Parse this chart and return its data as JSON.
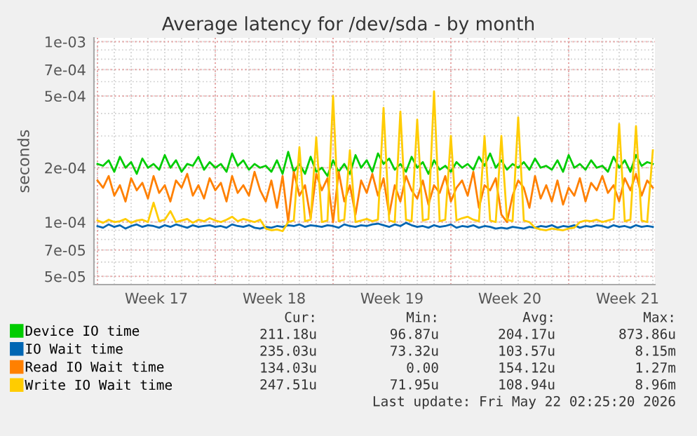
{
  "chart_data": {
    "type": "line",
    "title": "Average latency for /dev/sda - by month",
    "ylabel": "seconds",
    "log": "y",
    "grid": true,
    "legend": "bottom",
    "marker": "none",
    "line_style": "solid",
    "xlim": [
      "2026-04-18T19:00",
      "2026-05-22T03:00"
    ],
    "xticks": [
      {
        "value": "2026-04-19",
        "label": null
      },
      {
        "value": "2026-04-22T12:00",
        "label": "Week 17"
      },
      {
        "value": "2026-04-26",
        "label": null
      },
      {
        "value": "2026-04-29T12:00",
        "label": "Week 18"
      },
      {
        "value": "2026-05-03",
        "label": null
      },
      {
        "value": "2026-05-06T12:00",
        "label": "Week 19"
      },
      {
        "value": "2026-05-10",
        "label": null
      },
      {
        "value": "2026-05-13T12:00",
        "label": "Week 20"
      },
      {
        "value": "2026-05-17",
        "label": null
      },
      {
        "value": "2026-05-20T12:00",
        "label": "Week 21"
      }
    ],
    "ylim": [
      4.5e-05,
      0.00105
    ],
    "yticks": [
      {
        "value": 5e-05,
        "label": "5e-05"
      },
      {
        "value": 7e-05,
        "label": "7e-05"
      },
      {
        "value": 0.0001,
        "label": "1e-04"
      },
      {
        "value": 0.0002,
        "label": "2e-04"
      },
      {
        "value": 0.0005,
        "label": "5e-04"
      },
      {
        "value": 0.0007,
        "label": "7e-04"
      },
      {
        "value": 0.001,
        "label": "1e-03"
      }
    ],
    "x": [
      "2026-04-19T00:00",
      "2026-04-19T08:00",
      "2026-04-19T16:00",
      "2026-04-20T00:00",
      "2026-04-20T08:00",
      "2026-04-20T16:00",
      "2026-04-21T00:00",
      "2026-04-21T08:00",
      "2026-04-21T16:00",
      "2026-04-22T00:00",
      "2026-04-22T08:00",
      "2026-04-22T16:00",
      "2026-04-23T00:00",
      "2026-04-23T08:00",
      "2026-04-23T16:00",
      "2026-04-24T00:00",
      "2026-04-24T08:00",
      "2026-04-24T16:00",
      "2026-04-25T00:00",
      "2026-04-25T08:00",
      "2026-04-25T16:00",
      "2026-04-26T00:00",
      "2026-04-26T08:00",
      "2026-04-26T16:00",
      "2026-04-27T00:00",
      "2026-04-27T08:00",
      "2026-04-27T16:00",
      "2026-04-28T00:00",
      "2026-04-28T08:00",
      "2026-04-28T16:00",
      "2026-04-29T00:00",
      "2026-04-29T08:00",
      "2026-04-29T16:00",
      "2026-04-30T00:00",
      "2026-04-30T08:00",
      "2026-04-30T16:00",
      "2026-05-01T00:00",
      "2026-05-01T08:00",
      "2026-05-01T16:00",
      "2026-05-02T00:00",
      "2026-05-02T08:00",
      "2026-05-02T16:00",
      "2026-05-03T00:00",
      "2026-05-03T08:00",
      "2026-05-03T16:00",
      "2026-05-04T00:00",
      "2026-05-04T08:00",
      "2026-05-04T16:00",
      "2026-05-05T00:00",
      "2026-05-05T08:00",
      "2026-05-05T16:00",
      "2026-05-06T00:00",
      "2026-05-06T08:00",
      "2026-05-06T16:00",
      "2026-05-07T00:00",
      "2026-05-07T08:00",
      "2026-05-07T16:00",
      "2026-05-08T00:00",
      "2026-05-08T08:00",
      "2026-05-08T16:00",
      "2026-05-09T00:00",
      "2026-05-09T08:00",
      "2026-05-09T16:00",
      "2026-05-10T00:00",
      "2026-05-10T08:00",
      "2026-05-10T16:00",
      "2026-05-11T00:00",
      "2026-05-11T08:00",
      "2026-05-11T16:00",
      "2026-05-12T00:00",
      "2026-05-12T08:00",
      "2026-05-12T16:00",
      "2026-05-13T00:00",
      "2026-05-13T08:00",
      "2026-05-13T16:00",
      "2026-05-14T00:00",
      "2026-05-14T08:00",
      "2026-05-14T16:00",
      "2026-05-15T00:00",
      "2026-05-15T08:00",
      "2026-05-15T16:00",
      "2026-05-16T00:00",
      "2026-05-16T08:00",
      "2026-05-16T16:00",
      "2026-05-17T00:00",
      "2026-05-17T08:00",
      "2026-05-17T16:00",
      "2026-05-18T00:00",
      "2026-05-18T08:00",
      "2026-05-18T16:00",
      "2026-05-19T00:00",
      "2026-05-19T08:00",
      "2026-05-19T16:00",
      "2026-05-20T00:00",
      "2026-05-20T08:00",
      "2026-05-20T16:00",
      "2026-05-21T00:00",
      "2026-05-21T08:00",
      "2026-05-21T16:00",
      "2026-05-22T00:00"
    ],
    "series": [
      {
        "name": "Device IO time",
        "color": "#00cc00",
        "values": [
          0.00021,
          0.000205,
          0.00022,
          0.00019,
          0.00023,
          0.0002,
          0.000215,
          0.000185,
          0.000225,
          0.0002,
          0.00021,
          0.000195,
          0.000235,
          0.0002,
          0.00022,
          0.00019,
          0.00021,
          0.000205,
          0.00023,
          0.000195,
          0.000215,
          0.0002,
          0.00021,
          0.00019,
          0.00024,
          0.000205,
          0.00022,
          0.000195,
          0.00021,
          0.0002,
          0.000205,
          0.00019,
          0.00022,
          0.000185,
          0.000245,
          0.00019,
          0.00021,
          0.000185,
          0.00023,
          0.00019,
          0.0002,
          0.00018,
          0.00022,
          0.00019,
          0.00021,
          0.000185,
          0.000235,
          0.0002,
          0.00022,
          0.00019,
          0.00024,
          0.00021,
          0.000225,
          0.000195,
          0.00021,
          0.00019,
          0.00023,
          0.0002,
          0.000215,
          0.000185,
          0.00022,
          0.000195,
          0.000205,
          0.00019,
          0.000215,
          0.0002,
          0.00021,
          0.000195,
          0.00023,
          0.000205,
          0.00024,
          0.0002,
          0.00022,
          0.000195,
          0.00021,
          0.0002,
          0.000215,
          0.000195,
          0.000225,
          0.0002,
          0.000205,
          0.000195,
          0.00022,
          0.00019,
          0.000235,
          0.0002,
          0.00021,
          0.000195,
          0.00022,
          0.0002,
          0.000205,
          0.00019,
          0.00023,
          0.0002,
          0.00022,
          0.00019,
          0.000235,
          0.000205,
          0.000215,
          0.00021
        ]
      },
      {
        "name": "IO Wait time",
        "color": "#0066b3",
        "values": [
          9.5e-05,
          9.3e-05,
          9.7e-05,
          9.4e-05,
          9.6e-05,
          9.2e-05,
          9.5e-05,
          9.7e-05,
          9.4e-05,
          9.6e-05,
          9.5e-05,
          9.3e-05,
          9.6e-05,
          9.4e-05,
          9.7e-05,
          9.5e-05,
          9.3e-05,
          9.6e-05,
          9.4e-05,
          9.5e-05,
          9.6e-05,
          9.4e-05,
          9.5e-05,
          9.3e-05,
          9.7e-05,
          9.5e-05,
          9.4e-05,
          9.6e-05,
          9.3e-05,
          9.2e-05,
          9.4e-05,
          9.3e-05,
          9.5e-05,
          9.4e-05,
          9.6e-05,
          9.5e-05,
          9.7e-05,
          9.4e-05,
          9.6e-05,
          9.5e-05,
          9.4e-05,
          9.6e-05,
          9.5e-05,
          9.3e-05,
          9.7e-05,
          9.5e-05,
          9.4e-05,
          9.6e-05,
          9.5e-05,
          9.7e-05,
          9.8e-05,
          9.6e-05,
          9.4e-05,
          9.7e-05,
          9.5e-05,
          9.9e-05,
          9.6e-05,
          9.4e-05,
          9.5e-05,
          9.3e-05,
          9.6e-05,
          9.4e-05,
          9.5e-05,
          9.7e-05,
          9.3e-05,
          9.5e-05,
          9.4e-05,
          9.6e-05,
          9.3e-05,
          9.5e-05,
          9.4e-05,
          9.2e-05,
          9.3e-05,
          9.2e-05,
          9.4e-05,
          9.3e-05,
          9.2e-05,
          9.4e-05,
          9.3e-05,
          9.5e-05,
          9.4e-05,
          9.6e-05,
          9.3e-05,
          9.5e-05,
          9.4e-05,
          9.6e-05,
          9.3e-05,
          9.5e-05,
          9.4e-05,
          9.6e-05,
          9.5e-05,
          9.3e-05,
          9.6e-05,
          9.4e-05,
          9.5e-05,
          9.3e-05,
          9.6e-05,
          9.4e-05,
          9.5e-05,
          9.4e-05
        ]
      },
      {
        "name": "Read IO Wait time",
        "color": "#ff8000",
        "values": [
          0.00017,
          0.000155,
          0.00018,
          0.00014,
          0.00016,
          0.00013,
          0.000175,
          0.00015,
          0.000165,
          0.000135,
          0.00018,
          0.000145,
          0.00016,
          0.00013,
          0.00017,
          0.000155,
          0.000185,
          0.00014,
          0.00016,
          0.000135,
          0.000175,
          0.00015,
          0.000165,
          0.00013,
          0.00018,
          0.000145,
          0.00016,
          0.00014,
          0.00019,
          0.00015,
          0.00013,
          0.00017,
          0.00012,
          0.00018,
          0.0001,
          0.00019,
          0.00014,
          0.00016,
          0.000105,
          0.000185,
          0.00015,
          0.000175,
          0.0001,
          0.00019,
          0.00013,
          0.00016,
          0.00011,
          0.00017,
          0.000145,
          0.000185,
          0.00014,
          0.000175,
          0.00011,
          0.00016,
          0.00013,
          0.00018,
          0.00015,
          0.000135,
          0.00017,
          0.000125,
          0.00016,
          0.000145,
          0.00018,
          0.00013,
          0.000155,
          0.00017,
          0.00014,
          0.00019,
          0.00012,
          0.00016,
          0.00015,
          0.000175,
          0.00011,
          0.0001,
          0.00014,
          0.00017,
          0.000155,
          0.00012,
          0.00018,
          0.000135,
          0.00016,
          0.00013,
          0.00017,
          0.000125,
          0.000155,
          0.00014,
          0.000175,
          0.00013,
          0.000165,
          0.00015,
          0.00018,
          0.000145,
          0.00016,
          0.00013,
          0.000175,
          0.00015,
          0.000185,
          0.00014,
          0.00017,
          0.000155
        ]
      },
      {
        "name": "Write IO Wait time",
        "color": "#ffcc00",
        "values": [
          0.000102,
          9.9e-05,
          0.000103,
          0.0001,
          0.000101,
          0.000104,
          9.9e-05,
          0.000102,
          0.000103,
          0.0001,
          0.000128,
          0.000101,
          0.000103,
          0.000115,
          0.0001,
          0.000102,
          0.000104,
          9.9e-05,
          0.000103,
          0.000101,
          0.000105,
          0.000102,
          0.0001,
          0.000103,
          0.000107,
          0.000101,
          0.000104,
          0.000102,
          0.0001,
          0.000103,
          9.2e-05,
          9e-05,
          9.1e-05,
          8.9e-05,
          0.0001,
          0.000102,
          0.00026,
          0.000101,
          0.000103,
          0.000295,
          0.0001,
          0.000102,
          0.0005,
          0.000101,
          0.000103,
          0.00025,
          0.0001,
          0.000102,
          0.000104,
          0.000101,
          0.000103,
          0.00043,
          0.000102,
          0.0001,
          0.00041,
          0.000103,
          0.000101,
          0.00037,
          0.000102,
          0.000104,
          0.00053,
          0.000101,
          0.000103,
          0.0003,
          0.000102,
          0.000105,
          0.000107,
          0.000103,
          0.000101,
          0.0003,
          0.000102,
          0.0001,
          0.0003,
          0.000103,
          0.000101,
          0.00038,
          0.000102,
          0.0001,
          9.3e-05,
          9.1e-05,
          9e-05,
          9.2e-05,
          9.1e-05,
          9e-05,
          9.2e-05,
          9.3e-05,
          0.0001,
          0.000102,
          0.000101,
          0.000103,
          0.0001,
          0.000102,
          0.000104,
          0.00035,
          0.000101,
          0.000103,
          0.00034,
          0.000102,
          0.0001,
          0.00025
        ]
      }
    ],
    "annotations": [
      "Cur:",
      "Min:",
      "Avg:",
      "Max:",
      "211.18u",
      "96.87u",
      "204.17u",
      "873.86u",
      "235.03u",
      "73.32u",
      "103.57u",
      "8.15m",
      "134.03u",
      "0.00",
      "154.12u",
      "1.27m",
      "247.51u",
      "71.95u",
      "108.94u",
      "8.96m",
      "Last update: Fri May 22 02:25:20 2026"
    ]
  }
}
